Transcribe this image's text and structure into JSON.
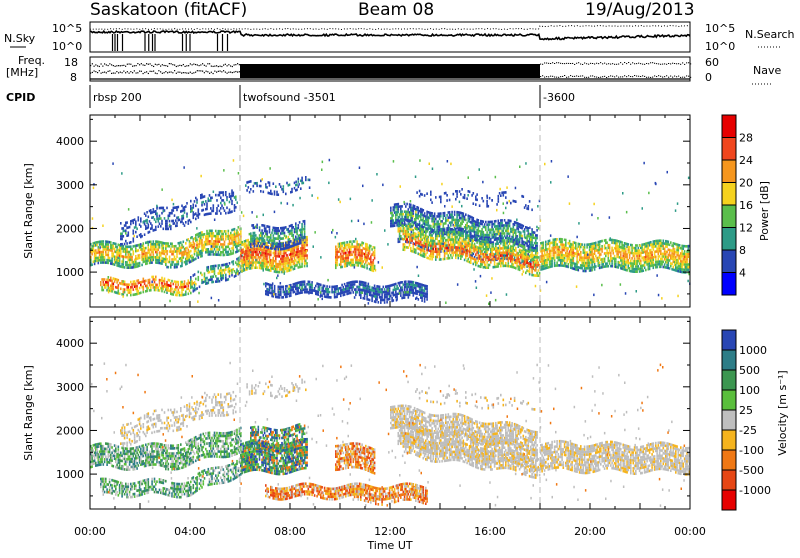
{
  "header": {
    "radar": "Saskatoon (fitACF)",
    "beam": "Beam 08",
    "date": "19/Aug/2013"
  },
  "summary": {
    "nsky_label": "N.Sky",
    "nsky_ticks": [
      "10^5",
      "10^0"
    ],
    "nsearch_label": "N.Search",
    "nsearch_ticks": [
      "10^5",
      "10^0"
    ],
    "freq_label_1": "Freq.",
    "freq_label_2": "[MHz]",
    "freq_ticks": [
      "18",
      "8"
    ],
    "nave_label": "Nave",
    "nave_ticks": [
      "60",
      "0"
    ],
    "cpid_label": "CPID",
    "cpid_segments": [
      {
        "label": "rbsp 200",
        "start_hour": 0
      },
      {
        "label": "twofsound -3501",
        "start_hour": 6
      },
      {
        "label": "-3600",
        "start_hour": 18
      }
    ]
  },
  "chart_data": [
    {
      "type": "heatmap",
      "name": "power",
      "ylabel": "Slant Range [km]",
      "yticks": [
        "1000",
        "2000",
        "3000",
        "4000"
      ],
      "ylim": [
        200,
        4600
      ],
      "xlim_hours": [
        0,
        24
      ],
      "colorbar_label": "Power [dB]",
      "colorbar_ticks": [
        "4",
        "8",
        "12",
        "16",
        "20",
        "24",
        "28"
      ],
      "colorbar_range": [
        0,
        32
      ],
      "colors": [
        "#0000ff",
        "#2846b4",
        "#2d9b87",
        "#5abe4b",
        "#f5d21e",
        "#f5961e",
        "#f0461e",
        "#e60000"
      ]
    },
    {
      "type": "heatmap",
      "name": "velocity",
      "ylabel": "Slant Range [km]",
      "yticks": [
        "1000",
        "2000",
        "3000",
        "4000"
      ],
      "ylim": [
        200,
        4600
      ],
      "xlim_hours": [
        0,
        24
      ],
      "colorbar_label": "Velocity [m s⁻¹]",
      "colorbar_ticks": [
        "1000",
        "500",
        "100",
        "25",
        "-25",
        "-100",
        "-500",
        "-1000"
      ],
      "colors": [
        "#2846b4",
        "#2d7d87",
        "#3c9650",
        "#5abe3c",
        "#bebebe",
        "#f5b41e",
        "#f07814",
        "#e64614",
        "#e60000"
      ]
    }
  ],
  "xaxis": {
    "label": "Time UT",
    "ticks": [
      "00:00",
      "04:00",
      "08:00",
      "12:00",
      "16:00",
      "20:00",
      "00:00"
    ]
  }
}
